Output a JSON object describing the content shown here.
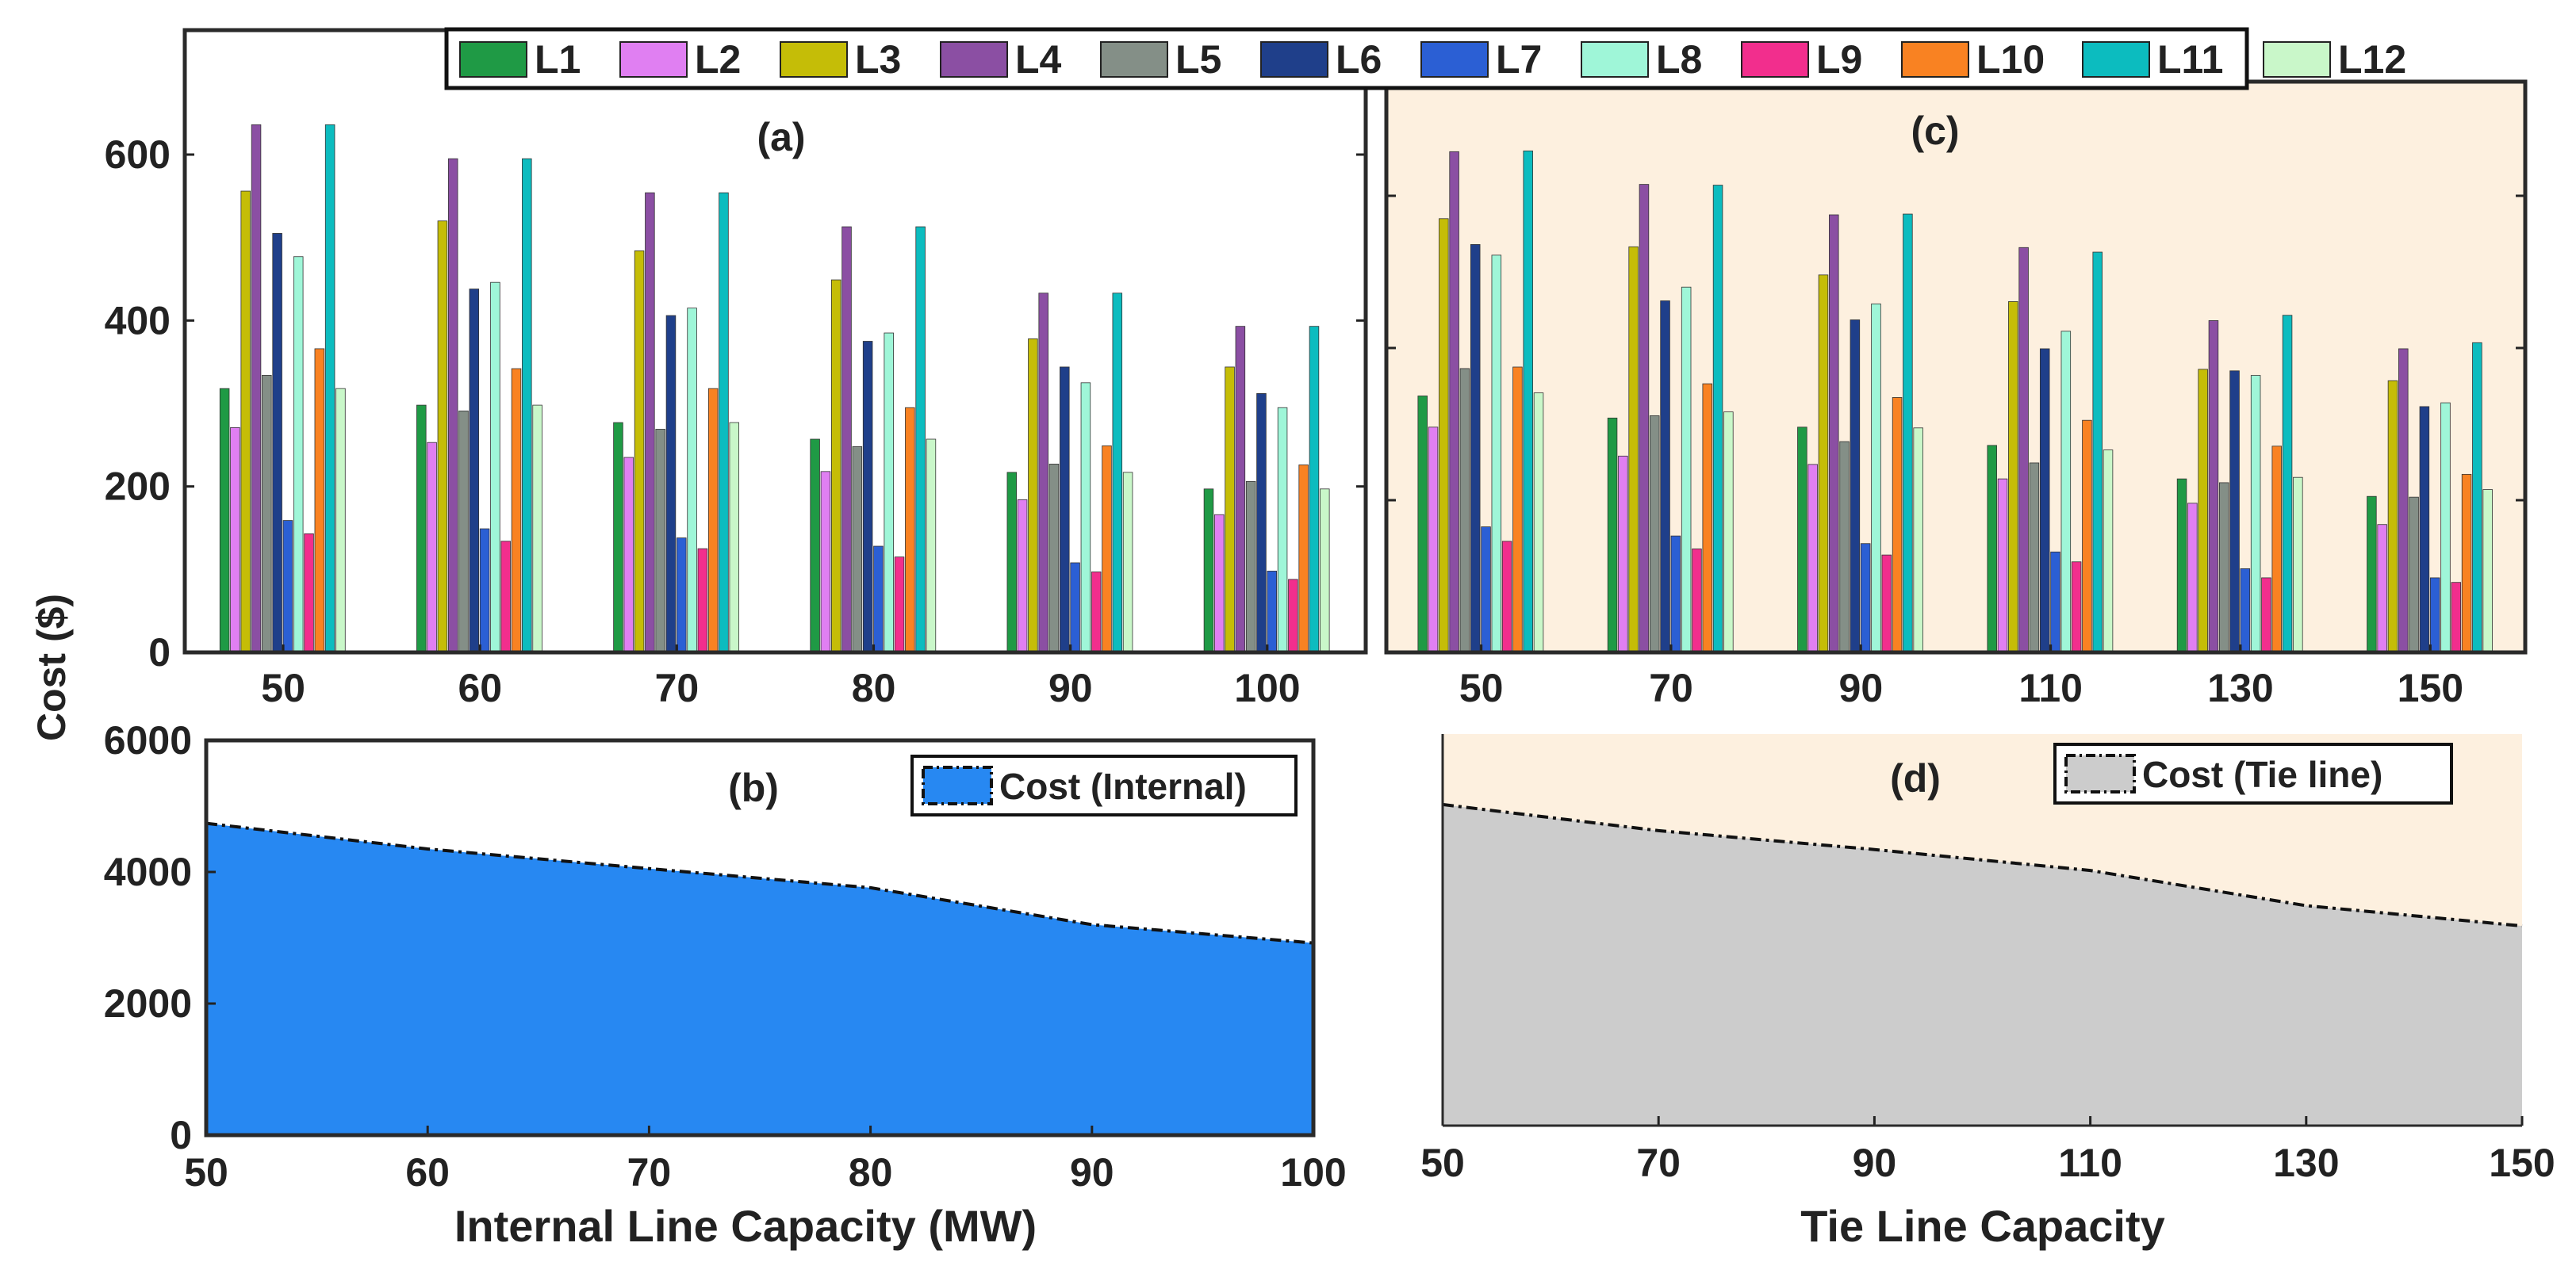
{
  "colors": {
    "series": [
      "#1f9a45",
      "#e07ff2",
      "#c5bd07",
      "#8b4fa3",
      "#848f87",
      "#1f3f8a",
      "#2b5fd4",
      "#9ff6d8",
      "#f22e8d",
      "#f98222",
      "#0cbcbf",
      "#c9f7c9"
    ],
    "panel_c_bg": "#fdf0df",
    "area_internal": "#2788f2",
    "area_tie": "#cccccc"
  },
  "shared": {
    "ylabel": "Cost ($)",
    "legend": [
      "L1",
      "L2",
      "L3",
      "L4",
      "L5",
      "L6",
      "L7",
      "L8",
      "L9",
      "L10",
      "L11",
      "L12"
    ]
  },
  "chart_data": [
    {
      "id": "a",
      "type": "bar",
      "title": "(a)",
      "categories": [
        "50",
        "60",
        "70",
        "80",
        "90",
        "100"
      ],
      "ylim": [
        0,
        750
      ],
      "yticks": [
        0,
        200,
        400,
        600
      ],
      "series": [
        {
          "name": "L1",
          "values": [
            318,
            298,
            277,
            257,
            217,
            197
          ]
        },
        {
          "name": "L2",
          "values": [
            271,
            253,
            235,
            218,
            184,
            166
          ]
        },
        {
          "name": "L3",
          "values": [
            556,
            520,
            484,
            449,
            378,
            344
          ]
        },
        {
          "name": "L4",
          "values": [
            636,
            595,
            554,
            513,
            433,
            393
          ]
        },
        {
          "name": "L5",
          "values": [
            334,
            291,
            269,
            248,
            227,
            206
          ]
        },
        {
          "name": "L6",
          "values": [
            505,
            438,
            406,
            375,
            344,
            312
          ]
        },
        {
          "name": "L7",
          "values": [
            159,
            149,
            138,
            128,
            108,
            98
          ]
        },
        {
          "name": "L8",
          "values": [
            477,
            446,
            415,
            385,
            325,
            295
          ]
        },
        {
          "name": "L9",
          "values": [
            143,
            134,
            125,
            115,
            97,
            88
          ]
        },
        {
          "name": "L10",
          "values": [
            366,
            342,
            318,
            295,
            249,
            226
          ]
        },
        {
          "name": "L11",
          "values": [
            636,
            595,
            554,
            513,
            433,
            393
          ]
        },
        {
          "name": "L12",
          "values": [
            318,
            298,
            277,
            257,
            217,
            197
          ]
        }
      ]
    },
    {
      "id": "b",
      "type": "area",
      "title": "(b)",
      "legend": "Cost (Internal)",
      "x": [
        50,
        60,
        70,
        80,
        90,
        100
      ],
      "values": [
        4740,
        4350,
        4050,
        3760,
        3200,
        2920
      ],
      "xlabel": "Internal Line Capacity (MW)",
      "xticks": [
        "50",
        "60",
        "70",
        "80",
        "90",
        "100"
      ],
      "xlim": [
        50,
        100
      ],
      "ylim": [
        0,
        6000
      ],
      "yticks": [
        "0",
        "2000",
        "4000",
        "6000"
      ]
    },
    {
      "id": "c",
      "type": "bar",
      "title": "(c)",
      "categories": [
        "50",
        "70",
        "90",
        "110",
        "130",
        "150"
      ],
      "ylim": [
        0,
        750
      ],
      "series": [
        {
          "name": "L1",
          "values": [
            337,
            308,
            296,
            272,
            228,
            205
          ]
        },
        {
          "name": "L2",
          "values": [
            296,
            258,
            247,
            228,
            196,
            168
          ]
        },
        {
          "name": "L3",
          "values": [
            570,
            533,
            496,
            461,
            372,
            357
          ]
        },
        {
          "name": "L4",
          "values": [
            658,
            615,
            575,
            532,
            436,
            399
          ]
        },
        {
          "name": "L5",
          "values": [
            373,
            311,
            277,
            249,
            223,
            204
          ]
        },
        {
          "name": "L6",
          "values": [
            536,
            462,
            437,
            399,
            370,
            323
          ]
        },
        {
          "name": "L7",
          "values": [
            165,
            153,
            143,
            132,
            110,
            98
          ]
        },
        {
          "name": "L8",
          "values": [
            522,
            480,
            458,
            422,
            364,
            328
          ]
        },
        {
          "name": "L9",
          "values": [
            146,
            136,
            128,
            119,
            98,
            92
          ]
        },
        {
          "name": "L10",
          "values": [
            375,
            353,
            335,
            305,
            271,
            234
          ]
        },
        {
          "name": "L11",
          "values": [
            659,
            614,
            576,
            526,
            443,
            407
          ]
        },
        {
          "name": "L12",
          "values": [
            341,
            316,
            295,
            266,
            230,
            214
          ]
        }
      ]
    },
    {
      "id": "d",
      "type": "area",
      "title": "(d)",
      "legend": "Cost (Tie line)",
      "x": [
        50,
        70,
        90,
        110,
        130,
        150
      ],
      "values": [
        4920,
        4520,
        4230,
        3910,
        3370,
        3060
      ],
      "xlabel": "Tie Line Capacity",
      "xticks": [
        "50",
        "70",
        "90",
        "110",
        "130",
        "150"
      ],
      "xlim": [
        50,
        150
      ],
      "ylim": [
        0,
        6000
      ]
    }
  ]
}
